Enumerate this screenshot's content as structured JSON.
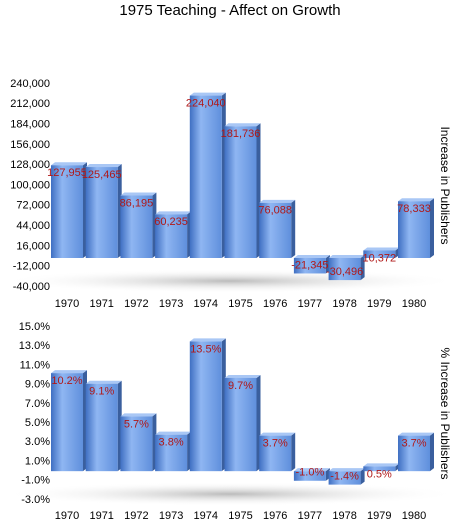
{
  "chart_data": [
    {
      "type": "bar",
      "title": "1975 Teaching - Affect on Growth",
      "y_label": "Increase in Publishers",
      "color": "#6f9de6",
      "categories": [
        "1970",
        "1971",
        "1972",
        "1973",
        "1974",
        "1975",
        "1976",
        "1977",
        "1978",
        "1979",
        "1980"
      ],
      "values": [
        127955,
        125465,
        86195,
        60235,
        224040,
        181736,
        76088,
        -21345,
        -30496,
        10372,
        78333
      ],
      "value_labels": [
        "127,955",
        "125,465",
        "86,195",
        "60,235",
        "224,040",
        "181,736",
        "76,088",
        "-21,345",
        "-30,496",
        "10,372",
        "78,333"
      ],
      "ylim": [
        -40000,
        240000
      ],
      "yticks": [
        {
          "value": -40000,
          "label": "-40,000"
        },
        {
          "value": -12000,
          "label": "-12,000"
        },
        {
          "value": 16000,
          "label": "16,000"
        },
        {
          "value": 44000,
          "label": "44,000"
        },
        {
          "value": 72000,
          "label": "72,000"
        },
        {
          "value": 100000,
          "label": "100,000"
        },
        {
          "value": 128000,
          "label": "128,000"
        },
        {
          "value": 156000,
          "label": "156,000"
        },
        {
          "value": 184000,
          "label": "184,000"
        },
        {
          "value": 212000,
          "label": "212,000"
        },
        {
          "value": 240000,
          "label": "240,000"
        }
      ]
    },
    {
      "type": "bar",
      "y_label": "% Increase in Publishers",
      "color": "#6f9de6",
      "categories": [
        "1970",
        "1971",
        "1972",
        "1973",
        "1974",
        "1975",
        "1976",
        "1977",
        "1978",
        "1979",
        "1980"
      ],
      "values": [
        10.2,
        9.1,
        5.7,
        3.8,
        13.5,
        9.7,
        3.7,
        -1.0,
        -1.4,
        0.5,
        3.7
      ],
      "value_labels": [
        "10.2%",
        "9.1%",
        "5.7%",
        "3.8%",
        "13.5%",
        "9.7%",
        "3.7%",
        "-1.0%",
        "-1.4%",
        "0.5%",
        "3.7%"
      ],
      "ylim": [
        -3,
        15
      ],
      "yticks": [
        {
          "value": -3,
          "label": "-3.0%"
        },
        {
          "value": -1,
          "label": "-1.0%"
        },
        {
          "value": 1,
          "label": "1.0%"
        },
        {
          "value": 3,
          "label": "3.0%"
        },
        {
          "value": 5,
          "label": "5.0%"
        },
        {
          "value": 7,
          "label": "7.0%"
        },
        {
          "value": 9,
          "label": "9.0%"
        },
        {
          "value": 11,
          "label": "11.0%"
        },
        {
          "value": 13,
          "label": "13.0%"
        },
        {
          "value": 15,
          "label": "15.0%"
        }
      ]
    }
  ]
}
